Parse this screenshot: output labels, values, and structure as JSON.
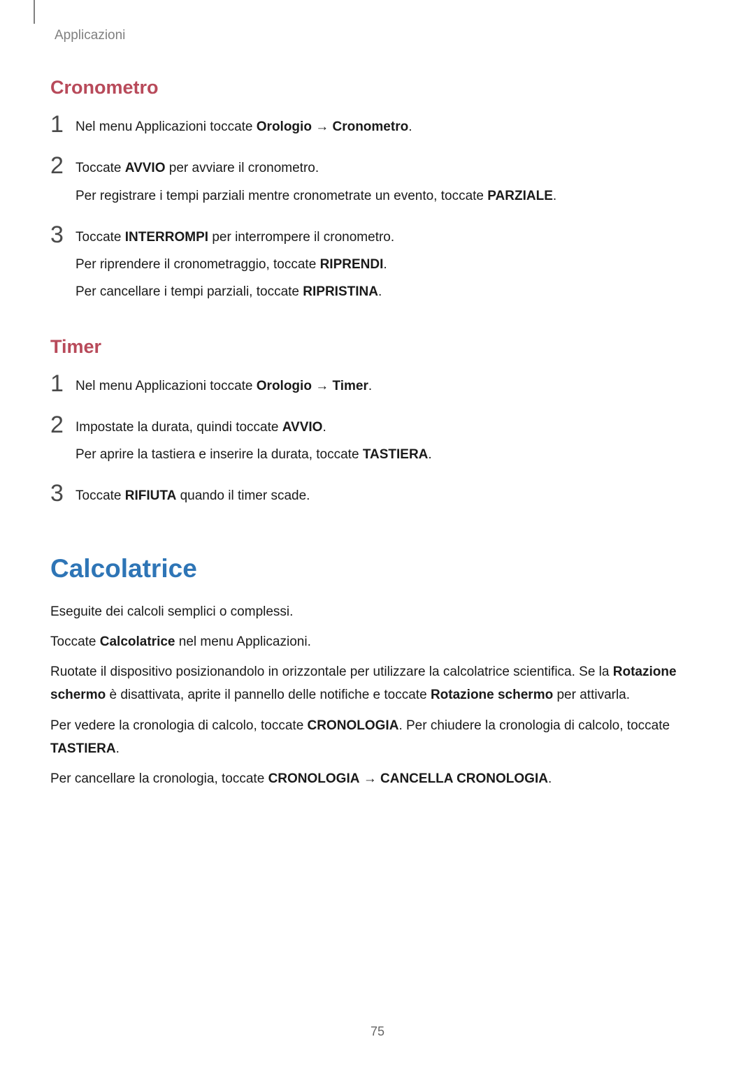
{
  "colors": {
    "breadcrumb": "#808080",
    "section_heading": "#b84a5a",
    "main_heading": "#2e75b6",
    "body_text": "#1a1a1a",
    "step_number": "#4a4a4a",
    "background": "#ffffff",
    "page_num": "#666666",
    "tab_marker": "#808080"
  },
  "typography": {
    "breadcrumb_size": 19,
    "section_heading_size": 27,
    "main_heading_size": 37,
    "body_size": 19,
    "step_number_size": 34,
    "page_num_size": 18,
    "line_height": 1.75
  },
  "breadcrumb": "Applicazioni",
  "section1": {
    "heading": "Cronometro",
    "steps": [
      {
        "num": "1",
        "lines": [
          {
            "pre": "Nel menu Applicazioni toccate ",
            "b1": "Orologio",
            "mid": " → ",
            "b2": "Cronometro",
            "post": "."
          }
        ]
      },
      {
        "num": "2",
        "lines": [
          {
            "pre": "Toccate ",
            "b1": "AVVIO",
            "post": " per avviare il cronometro."
          },
          {
            "pre": "Per registrare i tempi parziali mentre cronometrate un evento, toccate ",
            "b1": "PARZIALE",
            "post": "."
          }
        ]
      },
      {
        "num": "3",
        "lines": [
          {
            "pre": "Toccate ",
            "b1": "INTERROMPI",
            "post": " per interrompere il cronometro."
          },
          {
            "pre": "Per riprendere il cronometraggio, toccate ",
            "b1": "RIPRENDI",
            "post": "."
          },
          {
            "pre": "Per cancellare i tempi parziali, toccate ",
            "b1": "RIPRISTINA",
            "post": "."
          }
        ]
      }
    ]
  },
  "section2": {
    "heading": "Timer",
    "steps": [
      {
        "num": "1",
        "lines": [
          {
            "pre": "Nel menu Applicazioni toccate ",
            "b1": "Orologio",
            "mid": " → ",
            "b2": "Timer",
            "post": "."
          }
        ]
      },
      {
        "num": "2",
        "lines": [
          {
            "pre": "Impostate la durata, quindi toccate ",
            "b1": "AVVIO",
            "post": "."
          },
          {
            "pre": "Per aprire la tastiera e inserire la durata, toccate ",
            "b1": "TASTIERA",
            "post": "."
          }
        ]
      },
      {
        "num": "3",
        "lines": [
          {
            "pre": "Toccate ",
            "b1": "RIFIUTA",
            "post": " quando il timer scade."
          }
        ]
      }
    ]
  },
  "section3": {
    "heading": "Calcolatrice",
    "paras": [
      [
        {
          "t": "Eseguite dei calcoli semplici o complessi."
        }
      ],
      [
        {
          "t": "Toccate "
        },
        {
          "t": "Calcolatrice",
          "b": true
        },
        {
          "t": " nel menu Applicazioni."
        }
      ],
      [
        {
          "t": "Ruotate il dispositivo posizionandolo in orizzontale per utilizzare la calcolatrice scientifica. Se la "
        },
        {
          "t": "Rotazione schermo",
          "b": true
        },
        {
          "t": " è disattivata, aprite il pannello delle notifiche e toccate "
        },
        {
          "t": "Rotazione schermo",
          "b": true
        },
        {
          "t": " per attivarla."
        }
      ],
      [
        {
          "t": "Per vedere la cronologia di calcolo, toccate "
        },
        {
          "t": "CRONOLOGIA",
          "b": true
        },
        {
          "t": ". Per chiudere la cronologia di calcolo, toccate "
        },
        {
          "t": "TASTIERA",
          "b": true
        },
        {
          "t": "."
        }
      ],
      [
        {
          "t": "Per cancellare la cronologia, toccate "
        },
        {
          "t": "CRONOLOGIA",
          "b": true
        },
        {
          "t": " → "
        },
        {
          "t": "CANCELLA CRONOLOGIA",
          "b": true
        },
        {
          "t": "."
        }
      ]
    ]
  },
  "page_number": "75"
}
